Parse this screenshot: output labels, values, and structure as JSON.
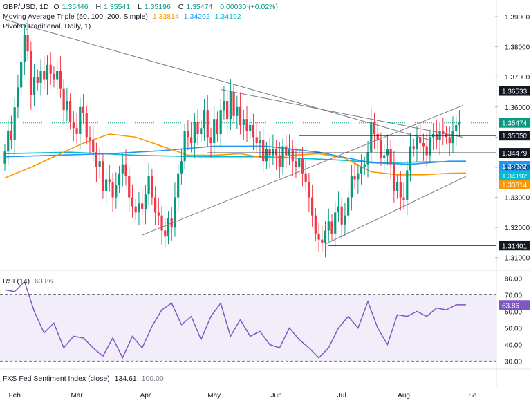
{
  "header": {
    "symbol": "GBP/USD, 1D",
    "open_label": "O",
    "open": "1.35446",
    "high_label": "H",
    "high": "1.35541",
    "low_label": "L",
    "low": "1.35196",
    "close_label": "C",
    "close": "1.35474",
    "change": "0.00030 (+0.02%)",
    "ma_title": "Moving Average Triple (50, 100, 200, Simple)",
    "ma50": "1.33814",
    "ma100": "1.34202",
    "ma200": "1.34192",
    "pivots_title": "Pivots (Traditional, Daily, 1)"
  },
  "rsi_header": {
    "title": "RSI (14)",
    "value": "63.86"
  },
  "fed_header": {
    "title": "FXS Fed Sentiment Index (close)",
    "v1": "134.61",
    "v2": "100.00"
  },
  "colors": {
    "up": "#089981",
    "down": "#f23645",
    "ma50": "#ff9800",
    "ma100": "#2196f3",
    "ma200": "#00bcd4",
    "rsi": "#7e57c2",
    "trend": "#787b86",
    "level": "#131722",
    "current": "#089981"
  },
  "chart_data": [
    {
      "type": "candlestick",
      "title": "GBP/USD, 1D",
      "xlabel": "",
      "ylabel": "",
      "ylim": [
        1.3065,
        1.3955
      ],
      "price_ticks": [
        "1.39000",
        "1.38000",
        "1.37000",
        "1.36000",
        "1.35000",
        "1.34000",
        "1.33000",
        "1.32000",
        "1.31000"
      ],
      "time_labels": [
        {
          "label": "Feb",
          "index": 3
        },
        {
          "label": "Mar",
          "index": 22
        },
        {
          "label": "Apr",
          "index": 43
        },
        {
          "label": "May",
          "index": 64
        },
        {
          "label": "Jun",
          "index": 83
        },
        {
          "label": "Jul",
          "index": 103
        },
        {
          "label": "Aug",
          "index": 122
        },
        {
          "label": "Se",
          "index": 143
        }
      ],
      "close_series": [
        1.3452,
        1.3522,
        1.349,
        1.3599,
        1.3665,
        1.375,
        1.384,
        1.3785,
        1.364,
        1.37,
        1.368,
        1.372,
        1.369,
        1.374,
        1.371,
        1.369,
        1.372,
        1.366,
        1.359,
        1.362,
        1.355,
        1.353,
        1.351,
        1.36,
        1.358,
        1.35,
        1.349,
        1.345,
        1.34,
        1.342,
        1.332,
        1.336,
        1.335,
        1.33,
        1.334,
        1.338,
        1.341,
        1.337,
        1.33,
        1.327,
        1.325,
        1.328,
        1.326,
        1.331,
        1.337,
        1.33,
        1.325,
        1.324,
        1.319,
        1.317,
        1.323,
        1.32,
        1.33,
        1.338,
        1.342,
        1.352,
        1.35,
        1.348,
        1.355,
        1.351,
        1.353,
        1.359,
        1.35,
        1.348,
        1.356,
        1.351,
        1.359,
        1.362,
        1.356,
        1.365,
        1.357,
        1.36,
        1.354,
        1.356,
        1.352,
        1.354,
        1.35,
        1.348,
        1.349,
        1.342,
        1.346,
        1.344,
        1.346,
        1.344,
        1.34,
        1.347,
        1.344,
        1.346,
        1.342,
        1.34,
        1.343,
        1.338,
        1.335,
        1.33,
        1.324,
        1.318,
        1.316,
        1.315,
        1.319,
        1.322,
        1.318,
        1.325,
        1.327,
        1.321,
        1.324,
        1.33,
        1.337,
        1.336,
        1.338,
        1.34,
        1.341,
        1.345,
        1.355,
        1.351,
        1.349,
        1.343,
        1.344,
        1.346,
        1.341,
        1.332,
        1.335,
        1.33,
        1.329,
        1.339,
        1.347,
        1.346,
        1.35,
        1.348,
        1.347,
        1.344,
        1.35,
        1.351,
        1.349,
        1.352,
        1.351,
        1.35,
        1.348,
        1.352,
        1.354,
        1.3547
      ],
      "ma50": [
        [
          0,
          1.3365
        ],
        [
          8,
          1.34
        ],
        [
          16,
          1.344
        ],
        [
          24,
          1.348
        ],
        [
          32,
          1.351
        ],
        [
          40,
          1.35
        ],
        [
          48,
          1.347
        ],
        [
          56,
          1.344
        ],
        [
          64,
          1.344
        ],
        [
          72,
          1.3445
        ],
        [
          80,
          1.343
        ],
        [
          88,
          1.344
        ],
        [
          96,
          1.3445
        ],
        [
          104,
          1.343
        ],
        [
          112,
          1.3385
        ],
        [
          120,
          1.3375
        ],
        [
          128,
          1.3375
        ],
        [
          136,
          1.338
        ],
        [
          141,
          1.3381
        ]
      ],
      "ma100": [
        [
          0,
          1.3435
        ],
        [
          16,
          1.344
        ],
        [
          32,
          1.3445
        ],
        [
          48,
          1.3455
        ],
        [
          64,
          1.347
        ],
        [
          80,
          1.347
        ],
        [
          96,
          1.345
        ],
        [
          112,
          1.3415
        ],
        [
          124,
          1.341
        ],
        [
          136,
          1.342
        ],
        [
          141,
          1.342
        ]
      ],
      "ma200": [
        [
          0,
          1.3445
        ],
        [
          20,
          1.345
        ],
        [
          40,
          1.344
        ],
        [
          60,
          1.3435
        ],
        [
          80,
          1.3435
        ],
        [
          100,
          1.3425
        ],
        [
          116,
          1.3415
        ],
        [
          130,
          1.3418
        ],
        [
          141,
          1.3419
        ]
      ],
      "pivot_levels": [
        "1.36533",
        "1.35050",
        "1.34479",
        "1.31401"
      ],
      "current_price": "1.35474",
      "ma_labels": [
        "1.34202",
        "1.34192",
        "1.33814"
      ],
      "trendlines": [
        {
          "from": [
            0,
            1.389
          ],
          "to": [
            130,
            1.349
          ]
        },
        {
          "from": [
            66,
            1.3658
          ],
          "to": [
            140,
            1.35
          ]
        },
        {
          "from": [
            42,
            1.3175
          ],
          "to": [
            140,
            1.3605
          ]
        },
        {
          "from": [
            98,
            1.3145
          ],
          "to": [
            141,
            1.337
          ]
        }
      ]
    },
    {
      "type": "line",
      "title": "RSI (14)",
      "xlabel": "",
      "ylabel": "",
      "ylim": [
        26,
        84
      ],
      "ticks": [
        "80.00",
        "70.00",
        "60.00",
        "50.00",
        "40.00",
        "30.00"
      ],
      "band": [
        30,
        70
      ],
      "midline": 50,
      "current": "63.86",
      "values": [
        [
          0,
          73
        ],
        [
          3,
          72
        ],
        [
          6,
          78
        ],
        [
          9,
          60
        ],
        [
          12,
          47
        ],
        [
          15,
          53
        ],
        [
          18,
          38
        ],
        [
          21,
          45
        ],
        [
          24,
          44
        ],
        [
          27,
          38
        ],
        [
          30,
          33
        ],
        [
          33,
          44
        ],
        [
          36,
          32
        ],
        [
          39,
          45
        ],
        [
          42,
          38
        ],
        [
          45,
          51
        ],
        [
          48,
          61
        ],
        [
          51,
          65
        ],
        [
          54,
          52
        ],
        [
          57,
          57
        ],
        [
          60,
          43
        ],
        [
          63,
          57
        ],
        [
          66,
          65
        ],
        [
          69,
          45
        ],
        [
          72,
          55
        ],
        [
          75,
          45
        ],
        [
          78,
          48
        ],
        [
          81,
          40
        ],
        [
          84,
          38
        ],
        [
          87,
          50
        ],
        [
          90,
          43
        ],
        [
          93,
          38
        ],
        [
          96,
          32
        ],
        [
          99,
          38
        ],
        [
          102,
          50
        ],
        [
          105,
          57
        ],
        [
          108,
          50
        ],
        [
          111,
          66
        ],
        [
          114,
          50
        ],
        [
          117,
          40
        ],
        [
          120,
          58
        ],
        [
          123,
          57
        ],
        [
          126,
          60
        ],
        [
          129,
          57
        ],
        [
          132,
          62
        ],
        [
          135,
          61
        ],
        [
          138,
          64
        ],
        [
          141,
          64
        ]
      ]
    },
    {
      "type": "line",
      "title": "FXS Fed Sentiment Index (close)",
      "series": [
        {
          "values": [
            134.61
          ]
        }
      ]
    }
  ]
}
